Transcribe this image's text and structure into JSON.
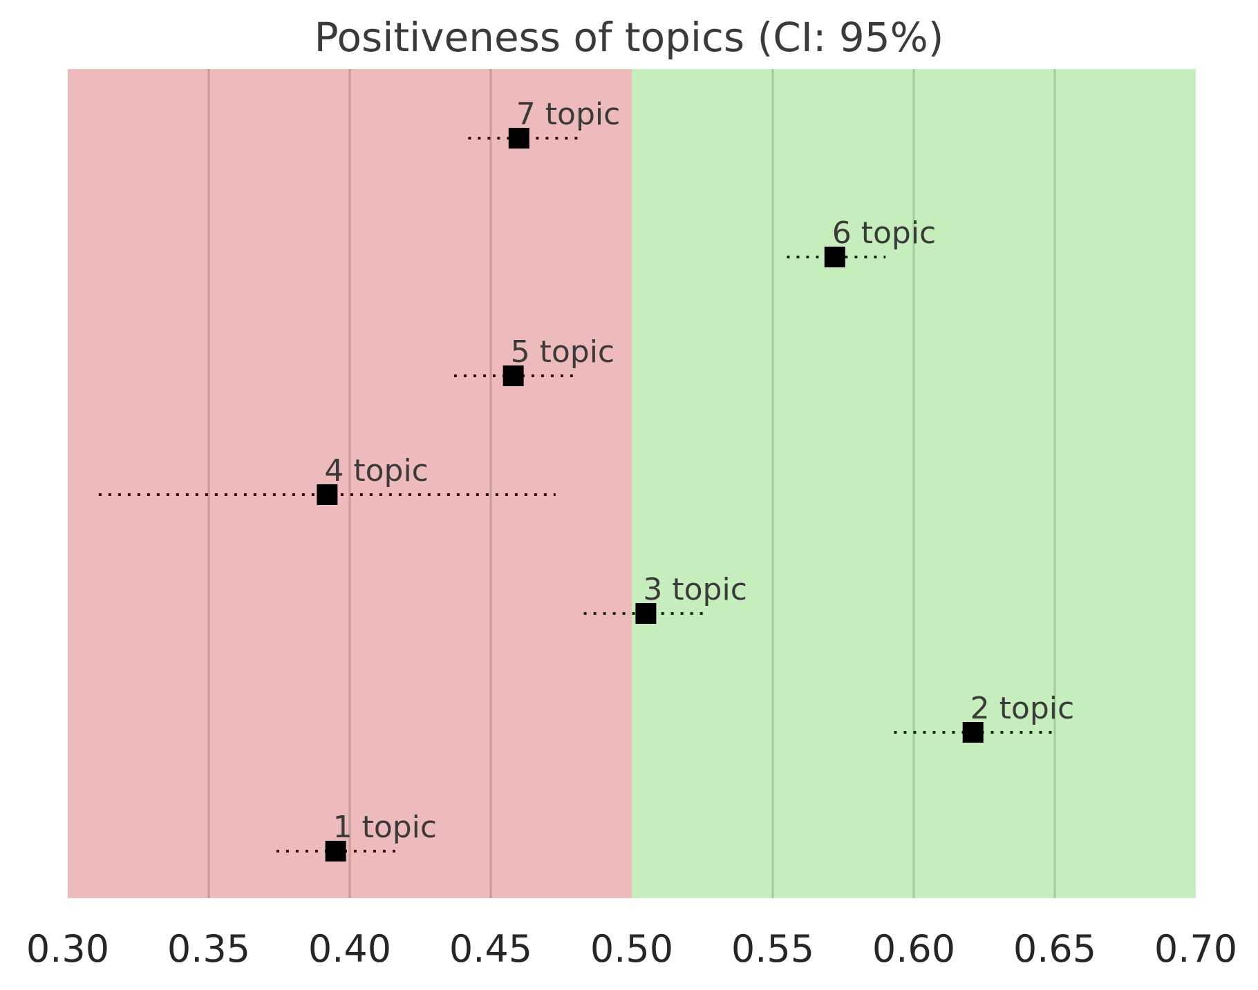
{
  "chart_data": {
    "type": "scatter",
    "title": "Positiveness of topics (CI: 95%)",
    "xlabel": "",
    "ylabel": "",
    "xlim": [
      0.3,
      0.7
    ],
    "xticks": [
      "0.30",
      "0.35",
      "0.40",
      "0.45",
      "0.50",
      "0.55",
      "0.60",
      "0.65",
      "0.70"
    ],
    "grid": "vertical",
    "threshold": 0.5,
    "colors": {
      "negative_region": "#eebbbc",
      "positive_region": "#c6eebd",
      "negative_grid": "#c89a9c",
      "positive_grid": "#a2cc9a",
      "marker": "#000000",
      "text": "#3a3a3a"
    },
    "points": [
      {
        "label": "7 topic",
        "value": 0.46,
        "ci_low": 0.442,
        "ci_high": 0.481
      },
      {
        "label": "6 topic",
        "value": 0.572,
        "ci_low": 0.555,
        "ci_high": 0.59
      },
      {
        "label": "5 topic",
        "value": 0.458,
        "ci_low": 0.437,
        "ci_high": 0.48
      },
      {
        "label": "4 topic",
        "value": 0.392,
        "ci_low": 0.311,
        "ci_high": 0.473
      },
      {
        "label": "3 topic",
        "value": 0.505,
        "ci_low": 0.483,
        "ci_high": 0.526
      },
      {
        "label": "2 topic",
        "value": 0.621,
        "ci_low": 0.593,
        "ci_high": 0.65
      },
      {
        "label": "1 topic",
        "value": 0.395,
        "ci_low": 0.374,
        "ci_high": 0.417
      }
    ]
  }
}
